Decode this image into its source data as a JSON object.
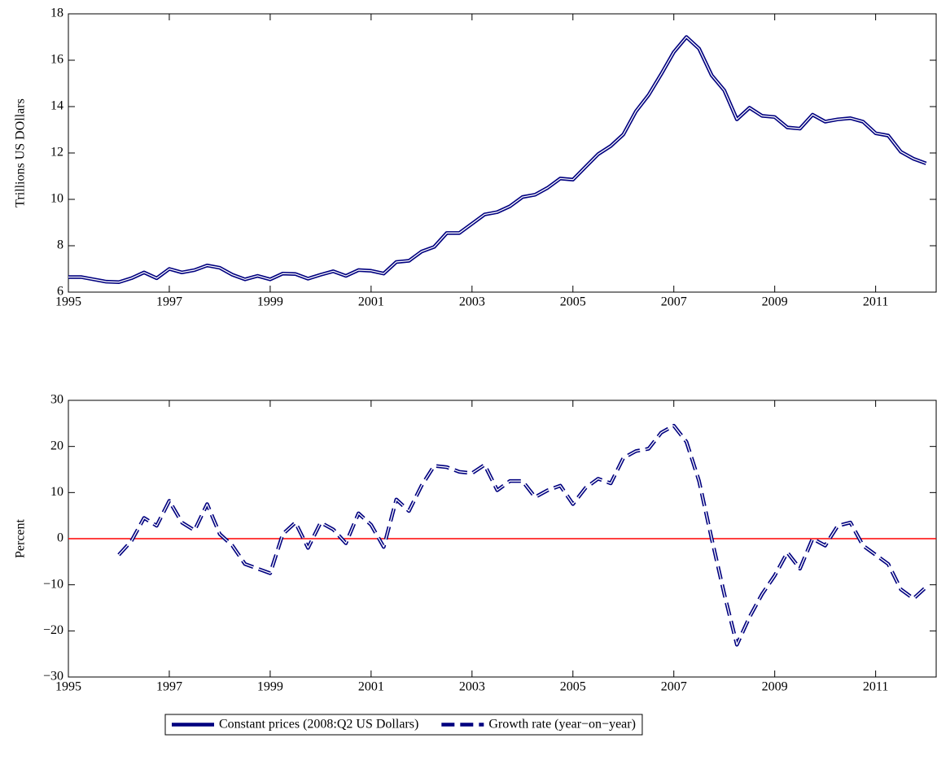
{
  "chart_data": [
    {
      "type": "line",
      "ylabel": "Trillions US DOllars",
      "x": [
        1995,
        1995.25,
        1995.5,
        1995.75,
        1996,
        1996.25,
        1996.5,
        1996.75,
        1997,
        1997.25,
        1997.5,
        1997.75,
        1998,
        1998.25,
        1998.5,
        1998.75,
        1999,
        1999.25,
        1999.5,
        1999.75,
        2000,
        2000.25,
        2000.5,
        2000.75,
        2001,
        2001.25,
        2001.5,
        2001.75,
        2002,
        2002.25,
        2002.5,
        2002.75,
        2003,
        2003.25,
        2003.5,
        2003.75,
        2004,
        2004.25,
        2004.5,
        2004.75,
        2005,
        2005.25,
        2005.5,
        2005.75,
        2006,
        2006.25,
        2006.5,
        2006.75,
        2007,
        2007.25,
        2007.5,
        2007.75,
        2008,
        2008.25,
        2008.5,
        2008.75,
        2009,
        2009.25,
        2009.5,
        2009.75,
        2010,
        2010.25,
        2010.5,
        2010.75,
        2011,
        2011.25,
        2011.5,
        2011.75,
        2012
      ],
      "series": [
        {
          "name": "Constant prices (2008:Q2 US Dollars)",
          "color": "#00007f",
          "line_style": "solid",
          "values": [
            6.65,
            6.65,
            6.55,
            6.45,
            6.43,
            6.6,
            6.85,
            6.6,
            7.0,
            6.85,
            6.95,
            7.15,
            7.05,
            6.75,
            6.55,
            6.7,
            6.55,
            6.8,
            6.78,
            6.58,
            6.75,
            6.9,
            6.7,
            6.95,
            6.92,
            6.8,
            7.3,
            7.35,
            7.75,
            7.95,
            8.55,
            8.55,
            8.95,
            9.35,
            9.45,
            9.7,
            10.1,
            10.2,
            10.5,
            10.9,
            10.85,
            11.4,
            11.95,
            12.3,
            12.8,
            13.8,
            14.5,
            15.4,
            16.35,
            17.0,
            16.5,
            15.35,
            14.7,
            13.45,
            13.95,
            13.6,
            13.55,
            13.1,
            13.05,
            13.65,
            13.35,
            13.45,
            13.5,
            13.35,
            12.85,
            12.75,
            12.05,
            11.75,
            11.55
          ]
        }
      ],
      "xlim": [
        1995,
        2012.2
      ],
      "xticks": [
        1995,
        1997,
        1999,
        2001,
        2003,
        2005,
        2007,
        2009,
        2011
      ],
      "ylim": [
        6,
        18
      ],
      "yticks": [
        6,
        8,
        10,
        12,
        14,
        16,
        18
      ]
    },
    {
      "type": "line",
      "ylabel": "Percent",
      "x": [
        1995,
        1995.25,
        1995.5,
        1995.75,
        1996,
        1996.25,
        1996.5,
        1996.75,
        1997,
        1997.25,
        1997.5,
        1997.75,
        1998,
        1998.25,
        1998.5,
        1998.75,
        1999,
        1999.25,
        1999.5,
        1999.75,
        2000,
        2000.25,
        2000.5,
        2000.75,
        2001,
        2001.25,
        2001.5,
        2001.75,
        2002,
        2002.25,
        2002.5,
        2002.75,
        2003,
        2003.25,
        2003.5,
        2003.75,
        2004,
        2004.25,
        2004.5,
        2004.75,
        2005,
        2005.25,
        2005.5,
        2005.75,
        2006,
        2006.25,
        2006.5,
        2006.75,
        2007,
        2007.25,
        2007.5,
        2007.75,
        2008,
        2008.25,
        2008.5,
        2008.75,
        2009,
        2009.25,
        2009.5,
        2009.75,
        2010,
        2010.25,
        2010.5,
        2010.75,
        2011,
        2011.25,
        2011.5,
        2011.75,
        2012
      ],
      "series": [
        {
          "name": "Growth rate (year−on−year)",
          "color": "#00007f",
          "line_style": "dashed",
          "values": [
            null,
            null,
            null,
            null,
            -3.5,
            -0.5,
            4.5,
            2.8,
            8.2,
            3.5,
            1.8,
            7.5,
            1,
            -1.5,
            -5.5,
            -6.5,
            -7.5,
            1,
            3.5,
            -2,
            3.5,
            2,
            -1,
            5.5,
            3,
            -1.8,
            8.5,
            6,
            11.5,
            15.8,
            15.5,
            14.5,
            14.2,
            16,
            10.5,
            12.5,
            12.5,
            9,
            10.5,
            11.5,
            7.5,
            11,
            13,
            12,
            17.5,
            19,
            19.5,
            23,
            24.5,
            21,
            12.5,
            0,
            -12,
            -23,
            -17,
            -12,
            -8,
            -3,
            -6.5,
            0,
            -1.5,
            2.8,
            3.5,
            -1.5,
            -3.5,
            -5.5,
            -11,
            -13,
            -10.5
          ]
        }
      ],
      "reference_line": {
        "value": 0,
        "color": "#ff0000"
      },
      "xlim": [
        1995,
        2012.2
      ],
      "xticks": [
        1995,
        1997,
        1999,
        2001,
        2003,
        2005,
        2007,
        2009,
        2011
      ],
      "ylim": [
        -30,
        30
      ],
      "yticks": [
        {
          "value": -30,
          "label": "−30"
        },
        {
          "value": -20,
          "label": "−20"
        },
        {
          "value": -10,
          "label": "−10"
        },
        0,
        10,
        20,
        30
      ]
    }
  ]
}
